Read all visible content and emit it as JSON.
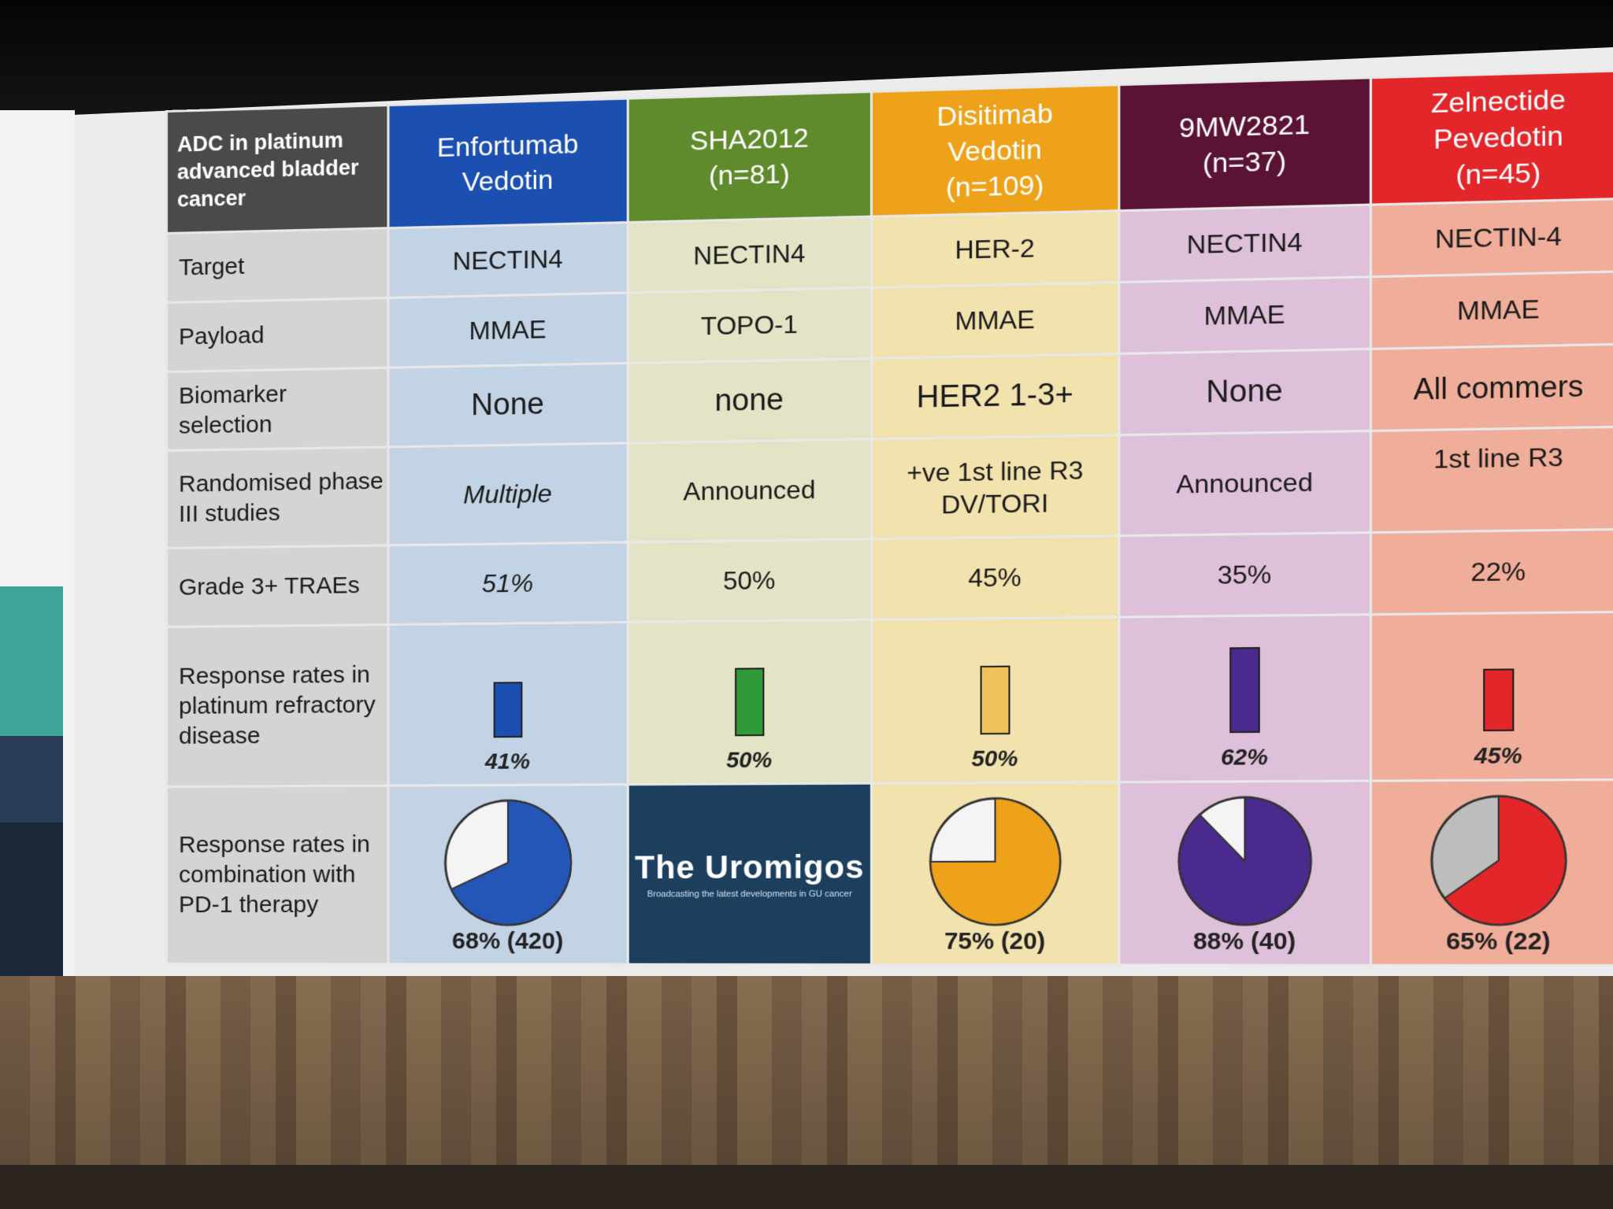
{
  "header": {
    "corner": "ADC in platinum advanced bladder cancer",
    "drugs": [
      {
        "name": "Enfortumab Vedotin",
        "n": "",
        "color": "#1b4fb0"
      },
      {
        "name": "SHA2012",
        "n": "(n=81)",
        "color": "#5f8b2c"
      },
      {
        "name": "Disitimab Vedotin",
        "n": "(n=109)",
        "color": "#eea21a"
      },
      {
        "name": "9MW2821",
        "n": "(n=37)",
        "color": "#5a1334"
      },
      {
        "name": "Zelnectide Pevedotin",
        "n": "(n=45)",
        "color": "#e2262a"
      }
    ]
  },
  "rows": [
    {
      "label": "Target",
      "values": [
        "NECTIN4",
        "NECTIN4",
        "HER-2",
        "NECTIN4",
        "NECTIN-4"
      ]
    },
    {
      "label": "Payload",
      "values": [
        "MMAE",
        "TOPO-1",
        "MMAE",
        "MMAE",
        "MMAE"
      ]
    },
    {
      "label": "Biomarker selection",
      "values": [
        "None",
        "none",
        "HER2 1-3+",
        "None",
        "All commers"
      ]
    },
    {
      "label": "Randomised phase III studies",
      "values": [
        "Multiple",
        "Announced",
        "+ve 1st line R3 DV/TORI",
        "Announced",
        "1st line R3"
      ]
    },
    {
      "label": "Grade 3+ TRAEs",
      "values": [
        "51%",
        "50%",
        "45%",
        "35%",
        "22%"
      ]
    }
  ],
  "refractory": {
    "label": "Response rates in platinum refractory disease",
    "items": [
      {
        "pct": 41,
        "text": "41%",
        "color": "#1b4fb0"
      },
      {
        "pct": 50,
        "text": "50%",
        "color": "#2e9a3a"
      },
      {
        "pct": 50,
        "text": "50%",
        "color": "#f0c35a"
      },
      {
        "pct": 62,
        "text": "62%",
        "color": "#4a2a8c"
      },
      {
        "pct": 45,
        "text": "45%",
        "color": "#e2262a"
      }
    ]
  },
  "combination": {
    "label": "Response rates in combination with PD-1 therapy",
    "items": [
      {
        "pct": 68,
        "text": "68% (420)",
        "color": "#2456b8",
        "rest": "#f4f4f4"
      },
      {
        "logo": true,
        "logo_text": "The Uromigos",
        "logo_sub": "Broadcasting the latest developments in GU cancer"
      },
      {
        "pct": 75,
        "text": "75% (20)",
        "color": "#eea21a",
        "rest": "#f4f4f4"
      },
      {
        "pct": 88,
        "text": "88% (40)",
        "color": "#4a2a8c",
        "rest": "#f4f4f4"
      },
      {
        "pct": 65,
        "text": "65% (22)",
        "color": "#e2262a",
        "rest": "#bdbdbd"
      }
    ]
  }
}
